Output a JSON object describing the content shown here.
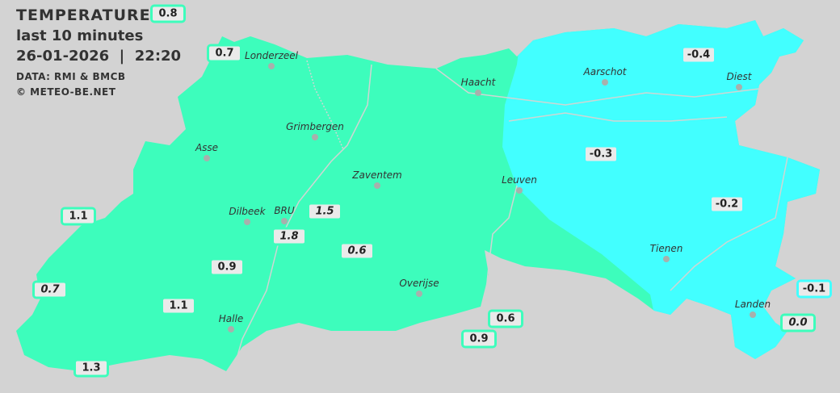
{
  "header": {
    "title": "TEMPERATURE",
    "subtitle": "last 10 minutes",
    "datetime": "26-01-2026  |  22:20",
    "source": "DATA: RMI & BMCB",
    "copyright": "© METEO-BE.NET"
  },
  "colors": {
    "background": "#d3d3d3",
    "zone_mild": "#3dfdbc",
    "zone_cold": "#42ffff",
    "badge": "#eaeaea"
  },
  "cities": [
    {
      "name": "Londerzeel"
    },
    {
      "name": "Haacht"
    },
    {
      "name": "Aarschot"
    },
    {
      "name": "Diest"
    },
    {
      "name": "Grimbergen"
    },
    {
      "name": "Asse"
    },
    {
      "name": "Zaventem"
    },
    {
      "name": "Leuven"
    },
    {
      "name": "Dilbeek"
    },
    {
      "name": "BRU"
    },
    {
      "name": "Tienen"
    },
    {
      "name": "Overijse"
    },
    {
      "name": "Halle"
    },
    {
      "name": "Landen"
    }
  ],
  "stations": [
    {
      "value": "0.8",
      "italic": false,
      "zone": "mild"
    },
    {
      "value": "0.7",
      "italic": false,
      "zone": "mild"
    },
    {
      "value": "-0.4",
      "italic": false,
      "zone": "cold"
    },
    {
      "value": "-0.3",
      "italic": false,
      "zone": "cold"
    },
    {
      "value": "-0.2",
      "italic": false,
      "zone": "cold"
    },
    {
      "value": "1.1",
      "italic": false,
      "zone": "mild"
    },
    {
      "value": "1.5",
      "italic": true,
      "zone": "mild"
    },
    {
      "value": "1.8",
      "italic": true,
      "zone": "mild"
    },
    {
      "value": "0.6",
      "italic": true,
      "zone": "mild"
    },
    {
      "value": "0.9",
      "italic": false,
      "zone": "mild"
    },
    {
      "value": "0.7",
      "italic": true,
      "zone": "mild"
    },
    {
      "value": "1.1",
      "italic": false,
      "zone": "mild"
    },
    {
      "value": "0.6",
      "italic": false,
      "zone": "mild"
    },
    {
      "value": "0.9",
      "italic": false,
      "zone": "mild"
    },
    {
      "value": "-0.1",
      "italic": false,
      "zone": "cold"
    },
    {
      "value": "0.0",
      "italic": true,
      "zone": "mild"
    },
    {
      "value": "1.3",
      "italic": false,
      "zone": "mild"
    }
  ]
}
